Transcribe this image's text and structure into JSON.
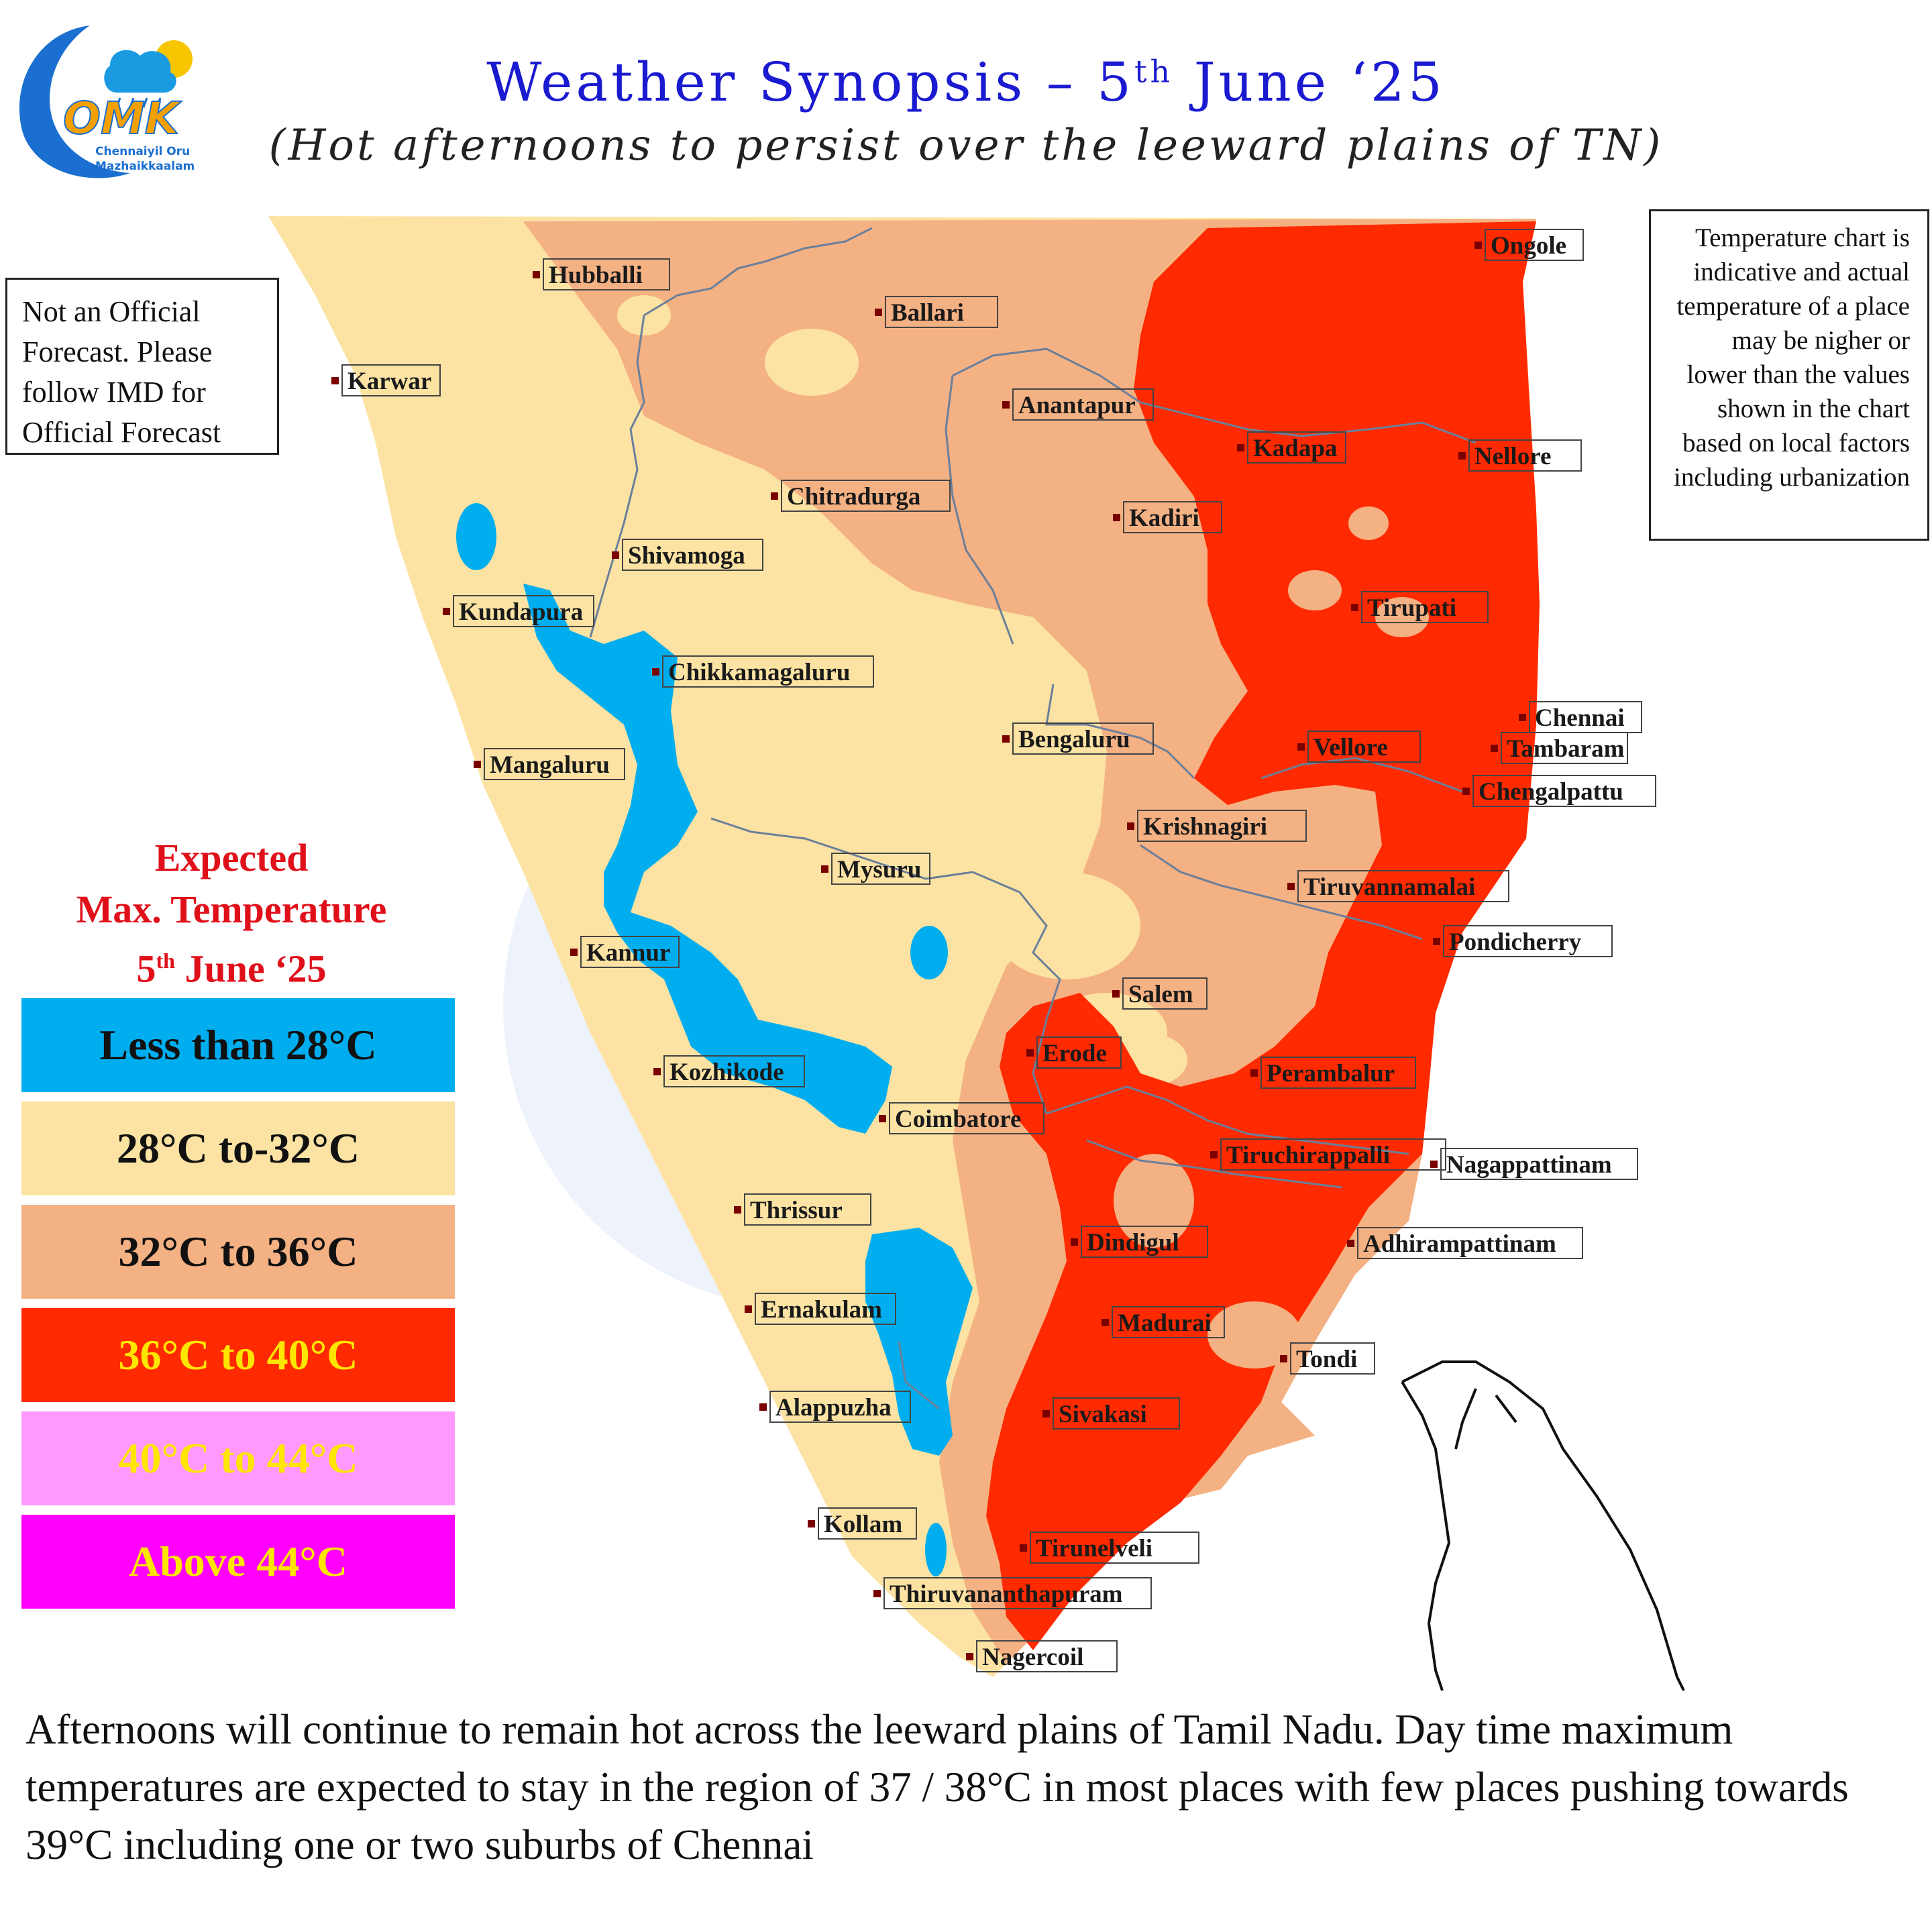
{
  "header": {
    "title": "Weather Synopsis – 5",
    "title_sup": "th",
    "title_end": " June ‘25",
    "subtitle": "(Hot afternoons to persist over the leeward plains of TN)"
  },
  "logo": {
    "icon": "cloud-sun-rain-icon",
    "acronym": "OMK",
    "line1": "Chennaiyil Oru",
    "line2": "Mazhaikkaalam"
  },
  "disclaimer": "Not an Official Forecast. Please follow IMD for Official Forecast",
  "chart_note": "Temperature chart is indicative and actual temperature of a place may be nigher or lower than the values shown in the chart based on local factors including urbanization",
  "legend": {
    "title_line1": "Expected",
    "title_line2": "Max. Temperature",
    "title_line3_a": "5",
    "title_line3_sup": "th",
    "title_line3_b": " June ‘25",
    "items": [
      {
        "label": "Less than 28°C",
        "color": "#00aeef",
        "text_color": "#111111"
      },
      {
        "label": "28°C to-32°C",
        "color": "#fce3a3",
        "text_color": "#111111"
      },
      {
        "label": "32°C to 36°C",
        "color": "#f4b183",
        "text_color": "#111111"
      },
      {
        "label": "36°C to 40°C",
        "color": "#ff2a00",
        "text_color": "#ffe600"
      },
      {
        "label": "40°C to 44°C",
        "color": "#ff99ff",
        "text_color": "#ffe600"
      },
      {
        "label": "Above 44°C",
        "color": "#ff00ff",
        "text_color": "#ffe600"
      }
    ]
  },
  "cities": [
    "Hubballi",
    "Ballari",
    "Ongole",
    "Karwar",
    "Anantapur",
    "Kadapa",
    "Nellore",
    "Chitradurga",
    "Kadiri",
    "Shivamoga",
    "Tirupati",
    "Kundapura",
    "Chikkamagaluru",
    "Chennai",
    "Bengaluru",
    "Vellore",
    "Tambaram",
    "Mangaluru",
    "Chengalpattu",
    "Krishnagiri",
    "Mysuru",
    "Tiruvannamalai",
    "Pondicherry",
    "Kannur",
    "Salem",
    "Erode",
    "Perambalur",
    "Kozhikode",
    "Coimbatore",
    "Tiruchirappalli",
    "Nagappattinam",
    "Thrissur",
    "Dindigul",
    "Adhirampattinam",
    "Ernakulam",
    "Madurai",
    "Tondi",
    "Alappuzha",
    "Sivakasi",
    "Kollam",
    "Tirunelveli",
    "Thiruvananthapuram",
    "Nagercoil"
  ],
  "summary": "Afternoons will continue to remain hot across the leeward plains of Tamil Nadu. Day time maximum temperatures are expected to stay in the region of 37 / 38°C in most places with few places pushing towards 39°C including one or two suburbs of Chennai"
}
